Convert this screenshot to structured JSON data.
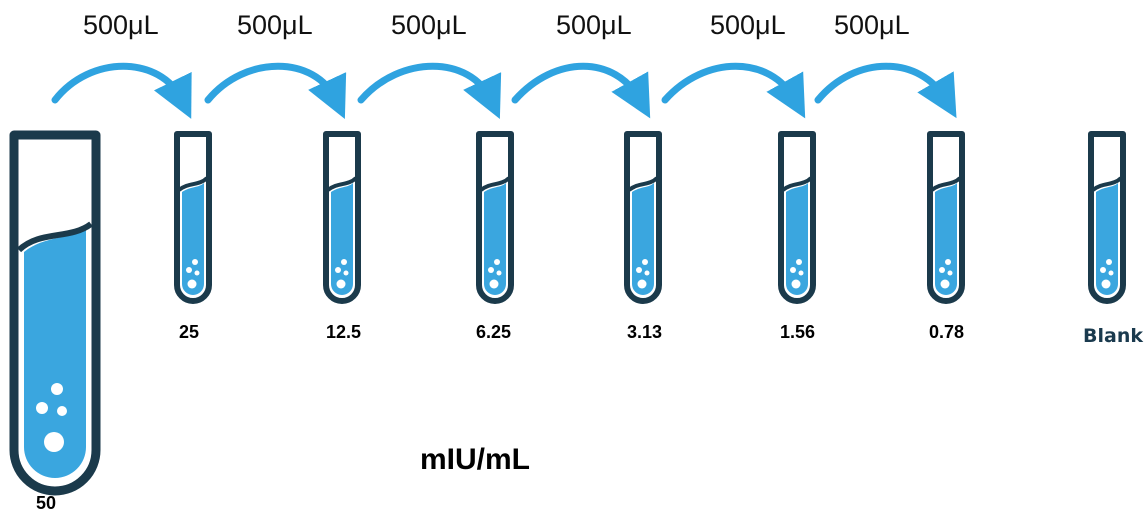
{
  "transfer_volumes": [
    "500μL",
    "500μL",
    "500μL",
    "500μL",
    "500μL",
    "500μL"
  ],
  "stock": {
    "label": "50"
  },
  "dilutions": [
    "25",
    "12.5",
    "6.25",
    "3.13",
    "1.56",
    "0.78"
  ],
  "blank": {
    "label": "Blank"
  },
  "unit": "mIU/mL",
  "colors": {
    "liquid": "#3aa6df",
    "outline": "#1b3a4b",
    "arrow": "#2fa3e0"
  }
}
